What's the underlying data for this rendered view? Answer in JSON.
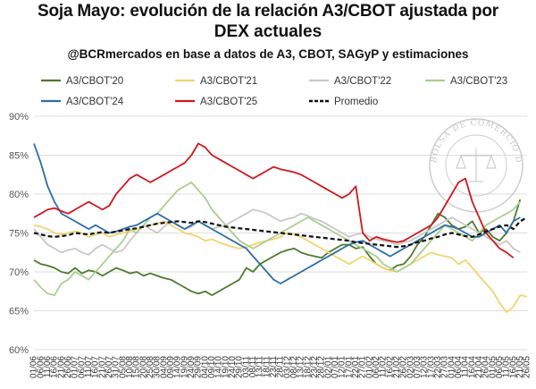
{
  "chart_data": {
    "type": "line",
    "title": "Soja Mayo: evolución de la relación A3/CBOT ajustada por",
    "title_line2": "DEX actuales",
    "subtitle": "@BCRmercados en base a datos de A3, CBOT, SAGyP y estimaciones",
    "watermark": "BOLSA DE COMERCIO DE ROSARIO",
    "ylabel": "",
    "xlabel": "",
    "ylim": [
      60,
      90
    ],
    "yticks": [
      "60%",
      "65%",
      "70%",
      "75%",
      "80%",
      "85%",
      "90%"
    ],
    "ytick_values": [
      60,
      65,
      70,
      75,
      80,
      85,
      90
    ],
    "categories": [
      "01/06",
      "06/06",
      "11/06",
      "16/06",
      "21/06",
      "26/06",
      "01/07",
      "06/07",
      "11/07",
      "16/07",
      "21/07",
      "26/07",
      "31/07",
      "05/08",
      "10/08",
      "15/08",
      "20/08",
      "25/08",
      "30/08",
      "04/09",
      "09/09",
      "14/09",
      "19/09",
      "24/09",
      "29/09",
      "04/10",
      "09/10",
      "14/10",
      "19/10",
      "24/10",
      "29/10",
      "03/11",
      "08/11",
      "13/11",
      "18/11",
      "23/11",
      "28/11",
      "03/12",
      "08/12",
      "13/12",
      "18/12",
      "23/12",
      "28/12",
      "02/01",
      "07/01",
      "12/01",
      "17/01",
      "22/01",
      "27/01",
      "01/02",
      "06/02",
      "11/02",
      "16/02",
      "21/02",
      "26/02",
      "02/03",
      "07/03",
      "12/03",
      "17/03",
      "22/03",
      "27/03",
      "01/04",
      "06/04",
      "11/04",
      "16/04",
      "21/04",
      "26/04",
      "01/05",
      "06/05",
      "11/05",
      "16/05",
      "21/05",
      "26/05"
    ],
    "series": [
      {
        "name": "A3/CBOT'20",
        "color": "#4e7a2c",
        "dashed": false,
        "values": [
          71.5,
          71,
          70.8,
          70.5,
          70,
          69.8,
          70.5,
          69.8,
          70.2,
          70,
          69.5,
          70,
          70.5,
          70.2,
          69.8,
          70,
          69.5,
          69.8,
          69.5,
          69.2,
          69,
          68.5,
          68,
          67.5,
          67.2,
          67.5,
          67,
          67.5,
          68,
          68.5,
          69,
          70.5,
          70,
          71,
          71.5,
          72,
          72.5,
          72.8,
          73,
          72.5,
          72.2,
          72,
          71.8,
          72.5,
          73,
          73.5,
          73.5,
          73,
          73.2,
          72,
          71,
          70.5,
          70.2,
          70.8,
          71,
          72,
          73.5,
          74.5,
          76,
          77.5,
          77,
          76,
          75.5,
          75.8,
          76.5,
          75,
          75.5,
          74.5,
          74,
          75,
          76.5,
          79.3,
          null
        ]
      },
      {
        "name": "A3/CBOT'21",
        "color": "#f3d46e",
        "dashed": false,
        "values": [
          76,
          75.8,
          75.5,
          75,
          74.8,
          75,
          75.2,
          75,
          74.5,
          74.8,
          75,
          74.5,
          74.8,
          75,
          75.2,
          75.5,
          75.8,
          76,
          76.2,
          76.5,
          76,
          75.5,
          75,
          74.8,
          74.5,
          74,
          74.2,
          73.8,
          73.5,
          73.2,
          73,
          73.2,
          73.5,
          73.8,
          74,
          74.2,
          74.5,
          75,
          74.8,
          74.5,
          74,
          73.5,
          73,
          72.5,
          72,
          71.5,
          71,
          71.5,
          72,
          71.5,
          71,
          70.5,
          70.2,
          70,
          70.5,
          71,
          71.5,
          72,
          72.5,
          72.2,
          72,
          71.8,
          71,
          71.5,
          70.5,
          69.5,
          68.5,
          67.5,
          66,
          64.8,
          65.5,
          67,
          66.8
        ]
      },
      {
        "name": "A3/CBOT'22",
        "color": "#c8c8c8",
        "dashed": false,
        "values": [
          75.5,
          74.5,
          73.5,
          73,
          72.5,
          72.8,
          73,
          72.5,
          72.2,
          73,
          73.5,
          73,
          72.5,
          72.8,
          74,
          75,
          76,
          75.5,
          75,
          75.8,
          76.5,
          76,
          75.5,
          75.8,
          76.5,
          76,
          75.5,
          75.8,
          76,
          76.5,
          77,
          77.5,
          78,
          77.8,
          77.5,
          77,
          76.5,
          76.8,
          77,
          77.5,
          77.2,
          76.8,
          76.5,
          76,
          75.5,
          75,
          74.5,
          74.8,
          75,
          74.5,
          74.2,
          74,
          73.8,
          73.5,
          73.8,
          74,
          74.5,
          75,
          75.5,
          76,
          76.5,
          77,
          76.5,
          76,
          75.5,
          75,
          74.5,
          74,
          73.5,
          74,
          73,
          72.5,
          null
        ]
      },
      {
        "name": "A3/CBOT'23",
        "color": "#a9cf8f",
        "dashed": false,
        "values": [
          69,
          68,
          67.2,
          67,
          68.5,
          69,
          70,
          69.5,
          69,
          70,
          71,
          72,
          73,
          74,
          75.5,
          75,
          76,
          77,
          77.5,
          78.5,
          79.5,
          80.5,
          81,
          81.5,
          80.5,
          79.5,
          78,
          77,
          76,
          75,
          74,
          73.5,
          73,
          73.5,
          74,
          74.5,
          75,
          75.5,
          76,
          76.5,
          77,
          76.5,
          76,
          75.5,
          75,
          74.5,
          74,
          73.5,
          73,
          72.5,
          72,
          71,
          70.5,
          70,
          70.5,
          71,
          72,
          73,
          74,
          75,
          76,
          75.5,
          75,
          74.5,
          74,
          75,
          76,
          76.5,
          77,
          77.5,
          78,
          79,
          null
        ]
      },
      {
        "name": "A3/CBOT'24",
        "color": "#2d6ea5",
        "dashed": false,
        "values": [
          86.5,
          84,
          81,
          79,
          77.5,
          77,
          76.5,
          76,
          75.5,
          76,
          75.5,
          75,
          75.2,
          75.5,
          75.8,
          76,
          76.5,
          77,
          77.5,
          77,
          76.5,
          76,
          75.5,
          76,
          76.5,
          76,
          75.5,
          75,
          74.5,
          74,
          73.5,
          73,
          72,
          71,
          70,
          69,
          68.5,
          69,
          69.5,
          70,
          70.5,
          71,
          71.5,
          72,
          72.5,
          73,
          73.5,
          73.8,
          74,
          73.5,
          73,
          72.5,
          72,
          72.5,
          73,
          73.5,
          74,
          74.5,
          75,
          75.5,
          76,
          75.8,
          75.5,
          75,
          74.5,
          74.5,
          75,
          75.5,
          76,
          75,
          76.5,
          77,
          null
        ]
      },
      {
        "name": "A3/CBOT'25",
        "color": "#d0171d",
        "dashed": false,
        "values": [
          77,
          77.5,
          78,
          78.2,
          77.8,
          77.5,
          78,
          78.5,
          79,
          78.5,
          78,
          78.5,
          80,
          81,
          82,
          82.5,
          82,
          81.5,
          82,
          82.5,
          83,
          83.5,
          84,
          85,
          86.5,
          86,
          85,
          84.5,
          84,
          83.5,
          83,
          82.5,
          82,
          82.5,
          83,
          83.5,
          83.2,
          83,
          82.8,
          82.5,
          82,
          81.5,
          81,
          80.5,
          80,
          79.5,
          80,
          81,
          75,
          74,
          74.5,
          74.2,
          74,
          73.8,
          74,
          74.5,
          75,
          75.5,
          76,
          77,
          78.5,
          80,
          81.5,
          82,
          79,
          77,
          75,
          74,
          73,
          72.5,
          71.8,
          null,
          null
        ]
      },
      {
        "name": "Promedio",
        "color": "#111111",
        "dashed": true,
        "values": [
          75,
          74.8,
          74.6,
          74.5,
          74.6,
          74.7,
          75,
          74.9,
          74.8,
          75,
          75.1,
          75,
          75.2,
          75.3,
          75.5,
          75.6,
          75.8,
          76,
          76.2,
          76.3,
          76.4,
          76.5,
          76.4,
          76.3,
          76.5,
          76.4,
          76.2,
          76,
          75.8,
          75.7,
          75.6,
          75.5,
          75.4,
          75.3,
          75.2,
          75.1,
          75,
          74.9,
          74.8,
          74.7,
          74.6,
          74.5,
          74.4,
          74.3,
          74.2,
          74.1,
          74,
          73.8,
          73.7,
          73.6,
          73.5,
          73.4,
          73.3,
          73.2,
          73.3,
          73.5,
          73.8,
          74,
          74.3,
          74.5,
          74.8,
          75,
          74.8,
          74.6,
          74.5,
          74.8,
          75.2,
          75.5,
          75.8,
          76,
          75.5,
          76.5,
          77
        ]
      }
    ],
    "legend_position": "top",
    "grid": true
  }
}
